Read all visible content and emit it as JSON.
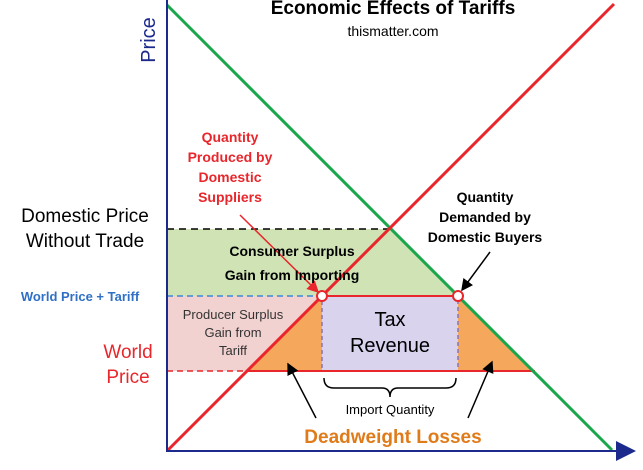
{
  "title": "Economic Effects of Tariffs",
  "subtitle": "thismatter.com",
  "axes": {
    "y_label": "Price"
  },
  "labels": {
    "domestic_price_line1": "Domestic Price",
    "domestic_price_line2": "Without Trade",
    "world_price_tariff": "World Price + Tariff",
    "world_price_line1": "World",
    "world_price_line2": "Price",
    "qty_produced_line1": "Quantity",
    "qty_produced_line2": "Produced by",
    "qty_produced_line3": "Domestic",
    "qty_produced_line4": "Suppliers",
    "qty_demanded_line1": "Quantity",
    "qty_demanded_line2": "Demanded by",
    "qty_demanded_line3": "Domestic Buyers",
    "consumer_surplus_line1": "Consumer Surplus",
    "consumer_surplus_line2": "Gain from Importing",
    "producer_surplus_line1": "Producer Surplus",
    "producer_surplus_line2": "Gain from",
    "producer_surplus_line3": "Tariff",
    "tax_revenue_line1": "Tax",
    "tax_revenue_line2": "Revenue",
    "import_quantity": "Import Quantity",
    "deadweight_losses": "Deadweight Losses"
  },
  "colors": {
    "supply": "#e8262b",
    "demand": "#1aa64a",
    "consumer_area": "#cfe3b4",
    "producer_area": "#f2d2d0",
    "deadweight_area": "#f5a85c",
    "tax_area": "#d9d3ee",
    "tax_border": "#8a72b8",
    "axis": "#1b2a8c",
    "red_text": "#e8262b",
    "blue_text": "#2f6fc4",
    "orange_text": "#e07b1a"
  }
}
